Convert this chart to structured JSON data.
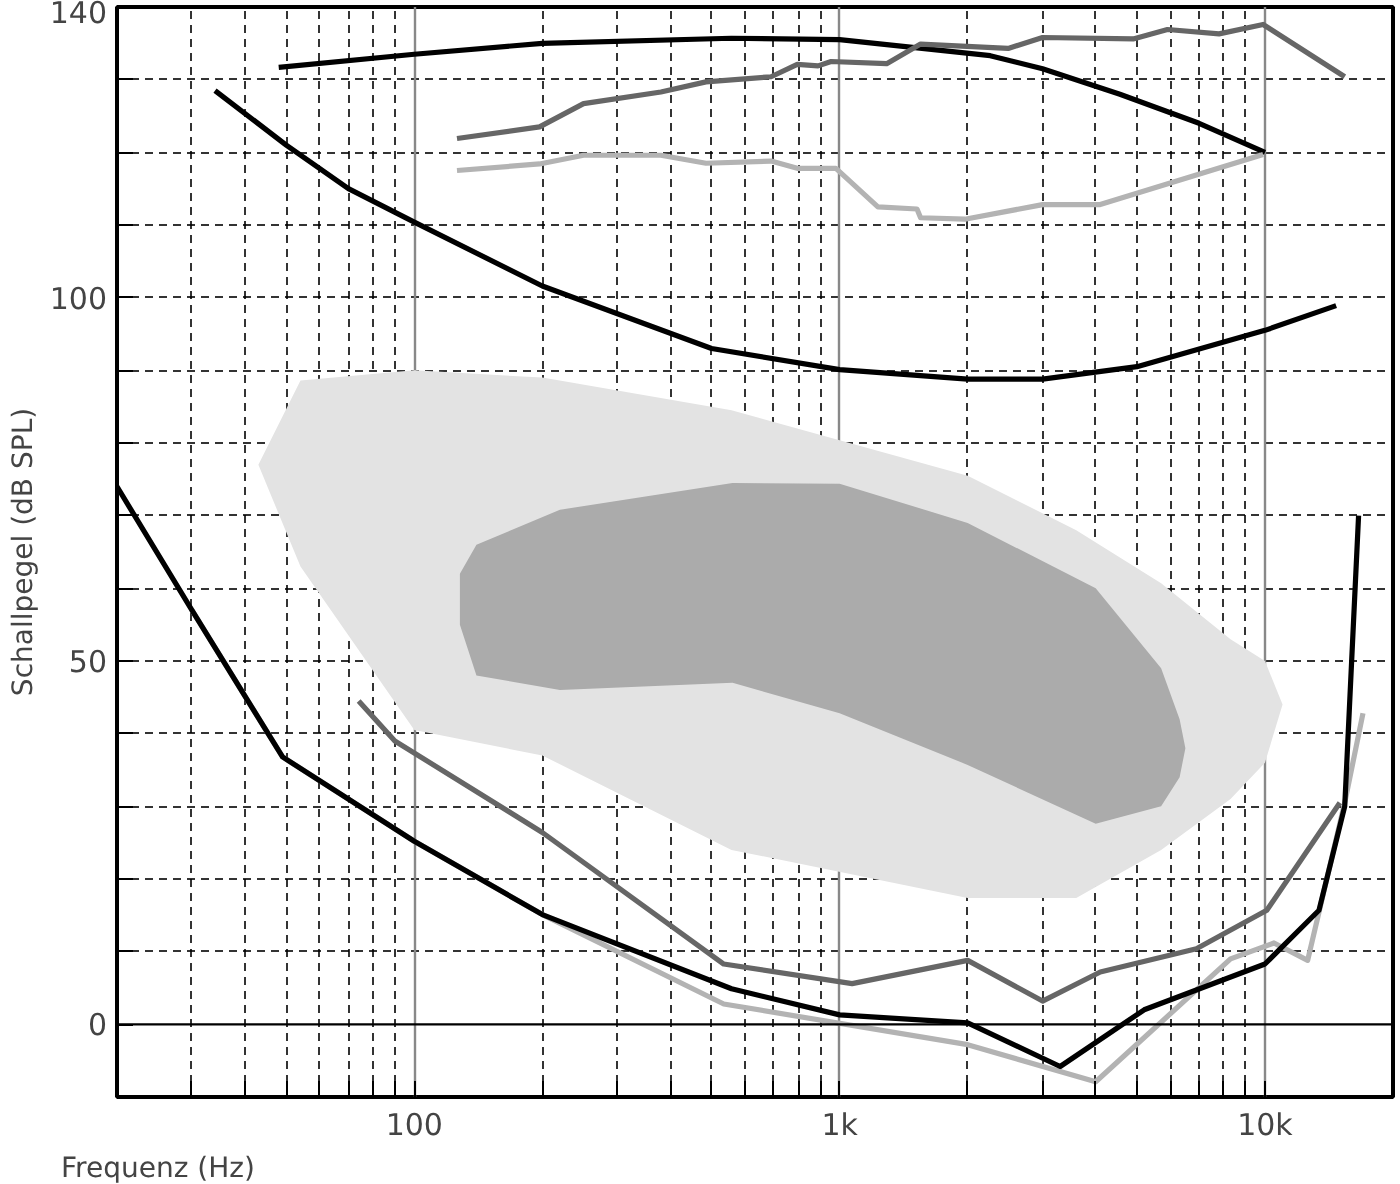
{
  "chart_data": {
    "type": "line",
    "xlabel": "Frequenz (Hz)",
    "ylabel": "Schallpegel (dB SPL)",
    "log": "x",
    "xlim": [
      20,
      20000
    ],
    "ylim": [
      -10,
      140
    ],
    "xticks": [
      {
        "value": 30,
        "label": null
      },
      {
        "value": 40,
        "label": null
      },
      {
        "value": 50,
        "label": null
      },
      {
        "value": 60,
        "label": null
      },
      {
        "value": 70,
        "label": null
      },
      {
        "value": 80,
        "label": null
      },
      {
        "value": 90,
        "label": null
      },
      100,
      {
        "value": 200,
        "label": null
      },
      {
        "value": 300,
        "label": null
      },
      {
        "value": 400,
        "label": null
      },
      {
        "value": 500,
        "label": null
      },
      {
        "value": 600,
        "label": null
      },
      {
        "value": 700,
        "label": null
      },
      {
        "value": 800,
        "label": null
      },
      {
        "value": 900,
        "label": null
      },
      {
        "value": 1000,
        "label": "1k"
      },
      {
        "value": 2000,
        "label": null
      },
      {
        "value": 3000,
        "label": null
      },
      {
        "value": 4000,
        "label": null
      },
      {
        "value": 5000,
        "label": null
      },
      {
        "value": 6000,
        "label": null
      },
      {
        "value": 7000,
        "label": null
      },
      {
        "value": 8000,
        "label": null
      },
      {
        "value": 9000,
        "label": null
      },
      {
        "value": 10000,
        "label": "10k"
      }
    ],
    "yticks": [
      0,
      {
        "value": 10,
        "label": null
      },
      {
        "value": 20,
        "label": null
      },
      {
        "value": 30,
        "label": null
      },
      {
        "value": 40,
        "label": null
      },
      50,
      {
        "value": 60,
        "label": null
      },
      {
        "value": 70,
        "label": null
      },
      {
        "value": 80,
        "label": null
      },
      {
        "value": 90,
        "label": null
      },
      100,
      {
        "value": 110,
        "label": null
      },
      {
        "value": 120,
        "label": null
      },
      {
        "value": 130,
        "label": null
      },
      140
    ],
    "grid": true,
    "line_style": "solid",
    "marker": "none",
    "ref_lines": [
      {
        "axis": "y",
        "value": 0,
        "color": "#000000",
        "line_style": "solid"
      }
    ],
    "series": [
      {
        "type": "area",
        "color": "#e3e3e3",
        "x": [
          43,
          54,
          100,
          200,
          557,
          2000,
          3600,
          5700,
          8300,
          10000,
          11000
        ],
        "values": [
          null,
          null,
          null,
          null,
          null,
          null,
          null,
          null,
          null,
          null,
          null
        ],
        "lower": [
          77,
          63,
          40.5,
          37,
          24,
          17.4,
          17.4,
          24,
          31,
          36,
          44
        ],
        "upper": [
          77,
          88.6,
          90,
          89,
          84.5,
          75.5,
          68,
          60.7,
          53,
          50,
          44
        ]
      },
      {
        "type": "area",
        "color": "#ababab",
        "x": [
          128,
          140,
          220,
          560,
          1000,
          2000,
          4000,
          5700,
          6300,
          6500
        ],
        "values": [
          null,
          null,
          null,
          null,
          null,
          null,
          null,
          null,
          null,
          null
        ],
        "lower": [
          55,
          48,
          46,
          47,
          42.8,
          35.7,
          27.6,
          30,
          34,
          38
        ],
        "upper": [
          62,
          66,
          70.8,
          74.5,
          74.4,
          69,
          60,
          49,
          42,
          38
        ]
      },
      {
        "color": "#000000",
        "x": [
          48,
          100,
          200,
          556,
          1000,
          2260,
          3000,
          4560,
          7000,
          10000
        ],
        "values": [
          131.7,
          133.5,
          135,
          135.7,
          135.5,
          133.3,
          131.5,
          128,
          124,
          120
        ]
      },
      {
        "color": "#000000",
        "x": [
          34,
          50,
          70,
          100,
          200,
          500,
          1000,
          2000,
          3000,
          5000,
          10000,
          14700
        ],
        "values": [
          128.5,
          121,
          115,
          110.4,
          101.6,
          93,
          90.1,
          88.8,
          88.8,
          90.5,
          95.5,
          98.9
        ]
      },
      {
        "color": "#666666",
        "x": [
          126,
          197,
          250,
          380,
          485,
          690,
          795,
          890,
          955,
          1290,
          1550,
          2490,
          3000,
          4900,
          5900,
          7800,
          9900,
          15400
        ],
        "values": [
          121.9,
          123.5,
          126.7,
          128.3,
          129.7,
          130.4,
          132.1,
          131.9,
          132.5,
          132.2,
          134.9,
          134.3,
          135.8,
          135.6,
          136.9,
          136.3,
          137.6,
          130.4
        ]
      },
      {
        "color": "#b3b3b3",
        "x": [
          126,
          197,
          250,
          380,
          485,
          690,
          795,
          980,
          1230,
          1520,
          1550,
          1970,
          3000,
          4080,
          9900
        ],
        "values": [
          117.5,
          118.4,
          119.6,
          119.6,
          118.5,
          118.8,
          117.8,
          117.8,
          112.5,
          112.2,
          111,
          110.8,
          112.8,
          112.8,
          119.7
        ]
      },
      {
        "color": "#b3b3b3",
        "x": [
          30,
          49,
          100,
          200,
          534,
          2000,
          4000,
          8300,
          10500,
          12600,
          15400,
          17000
        ],
        "values": [
          57,
          36.8,
          25.2,
          15.1,
          2.8,
          -2.8,
          -7.9,
          9,
          11.2,
          8.8,
          30.5,
          42.8
        ]
      },
      {
        "color": "#666666",
        "x": [
          74,
          90,
          200,
          534,
          1070,
          2000,
          3000,
          4100,
          6900,
          10100,
          15000
        ],
        "values": [
          44.5,
          39,
          26.4,
          8.3,
          5.6,
          8.8,
          3.2,
          7.2,
          10.4,
          15.7,
          30.5
        ]
      },
      {
        "color": "#000000",
        "x": [
          20,
          30,
          49,
          100,
          200,
          557,
          1000,
          2000,
          3300,
          5200,
          10000,
          13400,
          15400,
          16600
        ],
        "values": [
          74,
          57,
          36.8,
          25.2,
          15.1,
          4.9,
          1.3,
          0.2,
          -5.8,
          2,
          8.3,
          15.7,
          30,
          70
        ]
      }
    ]
  }
}
